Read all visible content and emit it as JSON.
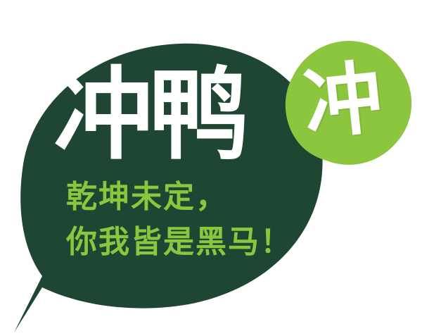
{
  "logo": {
    "headline": "冲鸭",
    "badge_char": "冲",
    "slogan_line_1": "乾坤未定，",
    "slogan_line_2": "你我皆是黑马！"
  },
  "colors": {
    "dark_green": "#1f4633",
    "light_green": "#8cc63f",
    "white": "#ffffff"
  }
}
